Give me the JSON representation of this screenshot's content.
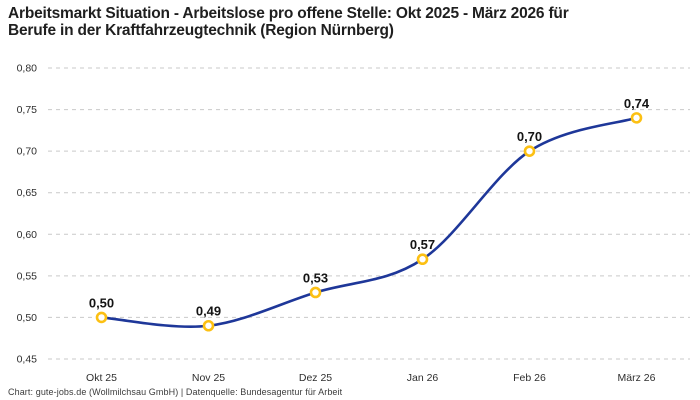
{
  "header": {
    "title_lines": [
      "Arbeitsmarkt Situation - Arbeitslose pro offene Stelle: Okt 2025 - März 2026 für",
      "Berufe in der Kraftfahrzeugtechnik (Region Nürnberg)"
    ]
  },
  "footer": {
    "text": "Chart: gute-jobs.de (Wollmilchsau GmbH) | Datenquelle: Bundesagentur für Arbeit"
  },
  "chart_data": {
    "type": "line",
    "title": "Arbeitsmarkt Situation - Arbeitslose pro offene Stelle: Okt 2025 - März 2026 für Berufe in der Kraftfahrzeugtechnik (Region Nürnberg)",
    "categories": [
      "Okt 25",
      "Nov 25",
      "Dez 25",
      "Jan 26",
      "Feb 26",
      "März 26"
    ],
    "values": [
      0.5,
      0.49,
      0.53,
      0.57,
      0.7,
      0.74
    ],
    "point_labels": [
      "0,50",
      "0,49",
      "0,53",
      "0,57",
      "0,70",
      "0,74"
    ],
    "xlabel": "",
    "ylabel": "",
    "ylim": [
      0.45,
      0.8
    ],
    "ytick_values": [
      0.45,
      0.5,
      0.55,
      0.6,
      0.65,
      0.7,
      0.75,
      0.8
    ],
    "ytick_labels": [
      "0,45",
      "0,50",
      "0,55",
      "0,60",
      "0,65",
      "0,70",
      "0,75",
      "0,80"
    ],
    "grid": "horizontal-dashed",
    "legend": "none",
    "colors": {
      "line": "#1e3799",
      "marker_ring": "#fcc013",
      "marker_fill": "#ffffff",
      "gridline": "#c9c9c9",
      "data_label": "#141414",
      "tick_label": "#2e2e2e"
    }
  }
}
